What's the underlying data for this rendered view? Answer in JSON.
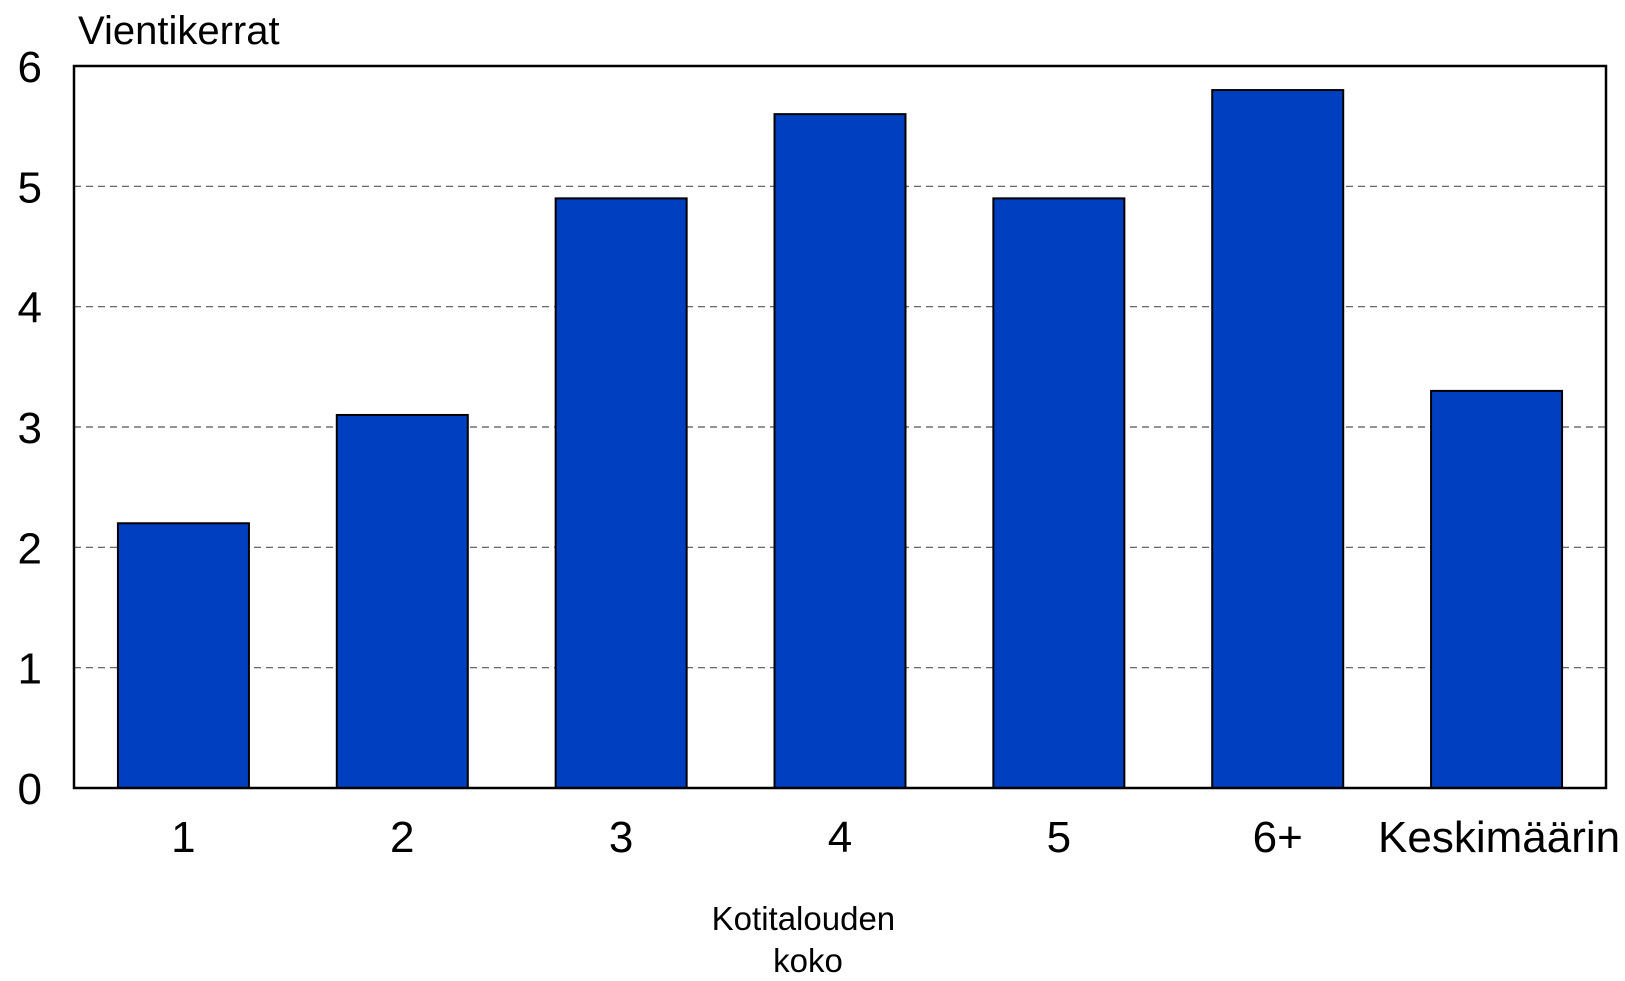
{
  "chart_data": {
    "type": "bar",
    "title": "",
    "ylabel": "Vientikerrat",
    "xlabel_lines": [
      "Kotitalouden",
      "koko"
    ],
    "categories": [
      "1",
      "2",
      "3",
      "4",
      "5",
      "6+",
      "Keskimäärin"
    ],
    "values": [
      2.2,
      3.1,
      4.9,
      5.6,
      4.9,
      5.8,
      3.3
    ],
    "ylim": [
      0,
      6
    ],
    "yticks": [
      "0",
      "1",
      "2",
      "3",
      "4",
      "5",
      "6"
    ],
    "grid": "horizontal dashed",
    "legend": "none",
    "colors": {
      "bar": "#0040c0",
      "bar_stroke": "#000000",
      "grid": "#555555"
    }
  }
}
